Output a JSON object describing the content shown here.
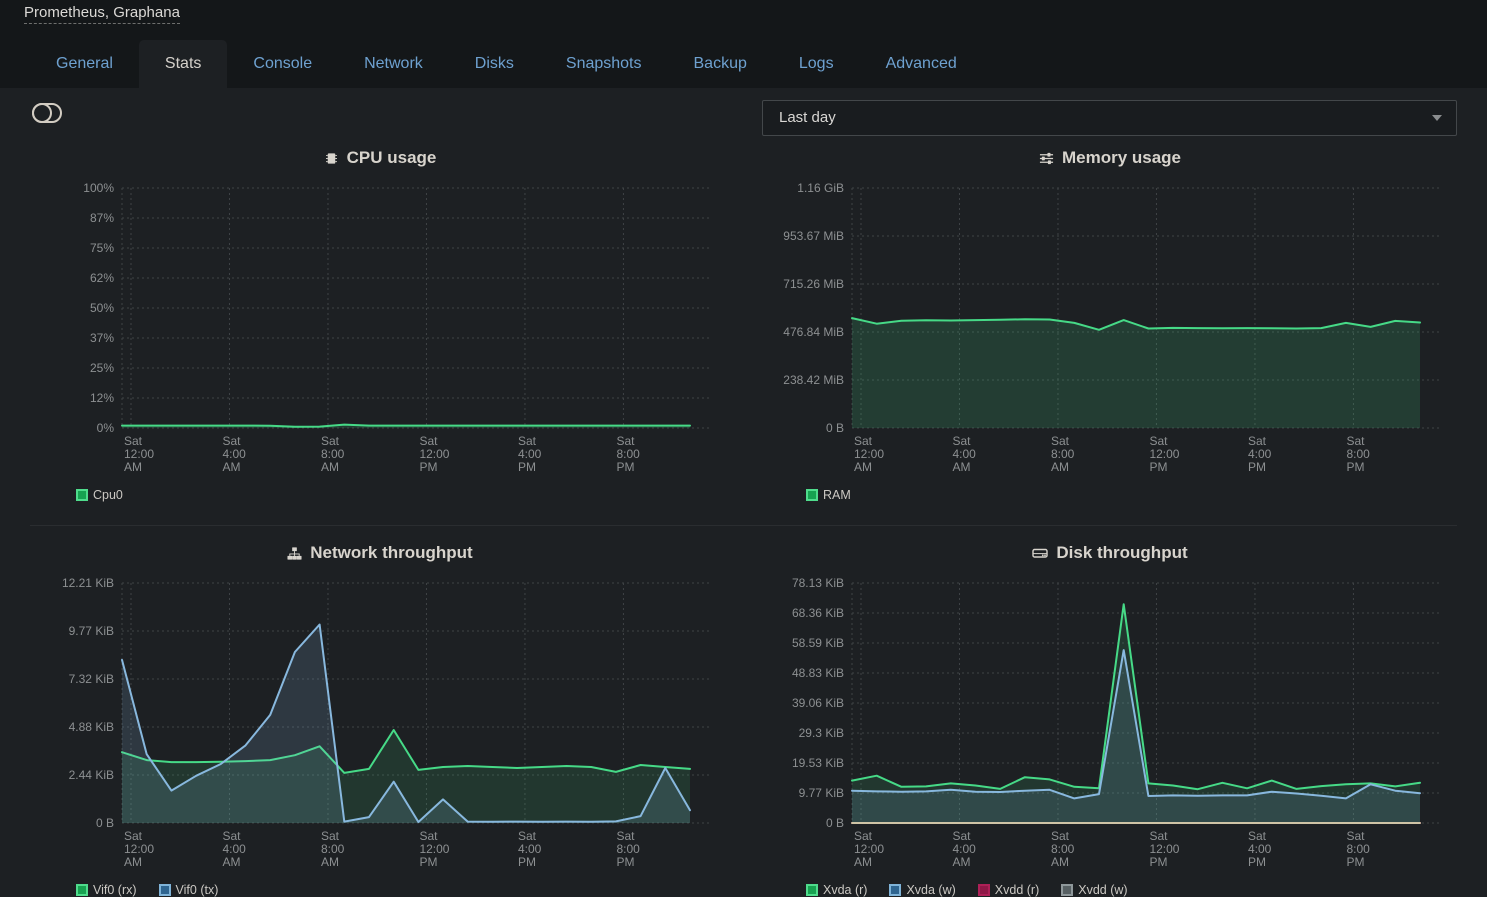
{
  "window_title": "Prometheus, Graphana",
  "tabs": {
    "items": [
      "General",
      "Stats",
      "Console",
      "Network",
      "Disks",
      "Snapshots",
      "Backup",
      "Logs",
      "Advanced"
    ],
    "active": "Stats"
  },
  "controls": {
    "time_range": "Last day",
    "stats_toggle_icon": "toggle-off-icon",
    "time_range_caret_icon": "chevron-down-icon"
  },
  "theme": {
    "bg_header": "#141719",
    "bg_content": "#1d2023",
    "tab_link_color": "#6ea1d0",
    "active_tab_text": "#d5d1cb",
    "axis_label_color": "#8d9092",
    "grid_color": "#3f4346",
    "chart_title_color": "#d8d4cd",
    "legend_text_color": "#cbc8c3",
    "accent_green": "#46da87",
    "accent_blue": "#88b8de",
    "accent_crimson": "#9e1b4e",
    "accent_tan": "#cfc4a6"
  },
  "chart_data": [
    {
      "id": "cpu",
      "type": "area",
      "title": "CPU usage",
      "icon": "microchip-icon",
      "unit": "%",
      "ymax": 100,
      "ylim": [
        0,
        100
      ],
      "grid": true,
      "legend_position": "bottom-left",
      "ytick_labels": [
        "100%",
        "87%",
        "75%",
        "62%",
        "50%",
        "37%",
        "25%",
        "12%",
        "0%"
      ],
      "xtick_labels": [
        [
          "Sat",
          "12:00",
          "AM"
        ],
        [
          "Sat",
          "4:00",
          "AM"
        ],
        [
          "Sat",
          "8:00",
          "AM"
        ],
        [
          "Sat",
          "12:00",
          "PM"
        ],
        [
          "Sat",
          "4:00",
          "PM"
        ],
        [
          "Sat",
          "8:00",
          "PM"
        ]
      ],
      "series": [
        {
          "name": "Cpu0",
          "color": "#46da87",
          "fill": "rgba(70,218,135,0.14)",
          "legend_fill": "#17a251",
          "legend_border": "#4fdc8c",
          "values": [
            1.0,
            1.0,
            1.0,
            1.0,
            1.0,
            1.0,
            0.95,
            0.55,
            0.6,
            1.4,
            1.0,
            1.0,
            1.0,
            1.0,
            1.0,
            1.0,
            1.0,
            1.0,
            1.0,
            1.0,
            1.0,
            1.0,
            1.0,
            1.0
          ]
        }
      ]
    },
    {
      "id": "memory",
      "type": "area",
      "title": "Memory usage",
      "icon": "sliders-icon",
      "unit": "MiB",
      "ymax": 1192.1,
      "ylim": [
        0,
        1192.1
      ],
      "grid": true,
      "legend_position": "bottom-left",
      "ytick_labels": [
        "1.16 GiB",
        "953.67 MiB",
        "715.26 MiB",
        "476.84 MiB",
        "238.42 MiB",
        "0 B"
      ],
      "xtick_labels": [
        [
          "Sat",
          "12:00",
          "AM"
        ],
        [
          "Sat",
          "4:00",
          "AM"
        ],
        [
          "Sat",
          "8:00",
          "AM"
        ],
        [
          "Sat",
          "12:00",
          "PM"
        ],
        [
          "Sat",
          "4:00",
          "PM"
        ],
        [
          "Sat",
          "8:00",
          "PM"
        ]
      ],
      "series": [
        {
          "name": "RAM",
          "color": "#46da87",
          "fill": "rgba(70,218,135,0.16)",
          "legend_fill": "#17a251",
          "legend_border": "#4fdc8c",
          "values": [
            546,
            518,
            533,
            535,
            534,
            536,
            538,
            540,
            539,
            522,
            488,
            536,
            494,
            497,
            496,
            495,
            496,
            495,
            494,
            496,
            522,
            502,
            532,
            524
          ]
        }
      ]
    },
    {
      "id": "network",
      "type": "area",
      "title": "Network throughput",
      "icon": "sitemap-icon",
      "unit": "KiB",
      "ymax": 12.21,
      "ylim": [
        0,
        12.21
      ],
      "grid": true,
      "legend_position": "bottom-left",
      "ytick_labels": [
        "12.21 KiB",
        "9.77 KiB",
        "7.32 KiB",
        "4.88 KiB",
        "2.44 KiB",
        "0 B"
      ],
      "xtick_labels": [
        [
          "Sat",
          "12:00",
          "AM"
        ],
        [
          "Sat",
          "4:00",
          "AM"
        ],
        [
          "Sat",
          "8:00",
          "AM"
        ],
        [
          "Sat",
          "12:00",
          "PM"
        ],
        [
          "Sat",
          "4:00",
          "PM"
        ],
        [
          "Sat",
          "8:00",
          "PM"
        ]
      ],
      "series": [
        {
          "name": "Vif0 (rx)",
          "color": "#46da87",
          "fill": "rgba(70,218,135,0.13)",
          "legend_fill": "#17a251",
          "legend_border": "#4fdc8c",
          "values": [
            3.6,
            3.2,
            3.1,
            3.1,
            3.12,
            3.15,
            3.2,
            3.45,
            3.9,
            2.55,
            2.75,
            4.73,
            2.7,
            2.85,
            2.9,
            2.85,
            2.8,
            2.85,
            2.9,
            2.85,
            2.6,
            2.95,
            2.85,
            2.75
          ]
        },
        {
          "name": "Vif0 (tx)",
          "color": "#88b8de",
          "fill": "rgba(136,184,222,0.16)",
          "legend_fill": "#2f6590",
          "legend_border": "#7fb3d8",
          "values": [
            8.3,
            3.5,
            1.65,
            2.4,
            3.0,
            3.95,
            5.5,
            8.7,
            10.1,
            0.07,
            0.3,
            2.1,
            0.05,
            1.2,
            0.07,
            0.06,
            0.07,
            0.06,
            0.07,
            0.06,
            0.08,
            0.35,
            2.8,
            0.65
          ]
        }
      ]
    },
    {
      "id": "disk",
      "type": "area",
      "title": "Disk throughput",
      "icon": "hdd-icon",
      "unit": "KiB",
      "ymax": 78.13,
      "ylim": [
        0,
        78.13
      ],
      "grid": true,
      "legend_position": "bottom-left",
      "ytick_labels": [
        "78.13 KiB",
        "68.36 KiB",
        "58.59 KiB",
        "48.83 KiB",
        "39.06 KiB",
        "29.3 KiB",
        "19.53 KiB",
        "9.77 KiB",
        "0 B"
      ],
      "xtick_labels": [
        [
          "Sat",
          "12:00",
          "AM"
        ],
        [
          "Sat",
          "4:00",
          "AM"
        ],
        [
          "Sat",
          "8:00",
          "AM"
        ],
        [
          "Sat",
          "12:00",
          "PM"
        ],
        [
          "Sat",
          "4:00",
          "PM"
        ],
        [
          "Sat",
          "8:00",
          "PM"
        ]
      ],
      "series": [
        {
          "name": "Xvda (r)",
          "color": "#46da87",
          "fill": "rgba(70,218,135,0.13)",
          "legend_fill": "#17a251",
          "legend_border": "#4fdc8c",
          "values": [
            13.8,
            15.4,
            11.8,
            11.9,
            12.9,
            12.2,
            11.1,
            14.9,
            14.2,
            11.8,
            11.3,
            71.2,
            12.9,
            12.2,
            11.0,
            13.1,
            11.3,
            13.8,
            11.1,
            12.0,
            12.6,
            12.9,
            11.9,
            13.1
          ]
        },
        {
          "name": "Xvda (w)",
          "color": "#88b8de",
          "fill": "rgba(136,184,222,0.15)",
          "legend_fill": "#2f6590",
          "legend_border": "#7fb3d8",
          "values": [
            10.5,
            10.3,
            10.2,
            10.3,
            10.8,
            10.2,
            10.1,
            10.5,
            10.8,
            8.0,
            9.4,
            56.3,
            8.8,
            9.0,
            8.9,
            9.0,
            9.0,
            10.2,
            9.6,
            8.9,
            8.0,
            12.6,
            10.5,
            9.7
          ]
        },
        {
          "name": "Xvdd (r)",
          "color": "#9e1b4e",
          "fill": null,
          "legend_fill": "#8f1847",
          "legend_border": "#ad2057",
          "values": [
            0,
            0,
            0,
            0,
            0,
            0,
            0,
            0,
            0,
            0,
            0,
            0,
            0,
            0,
            0,
            0,
            0,
            0,
            0,
            0,
            0,
            0,
            0,
            0
          ]
        },
        {
          "name": "Xvdd (w)",
          "color": "#cfc4a6",
          "fill": null,
          "legend_fill": "#576063",
          "legend_border": "#8f989b",
          "values": [
            0,
            0,
            0,
            0,
            0,
            0,
            0,
            0,
            0,
            0,
            0,
            0,
            0,
            0,
            0,
            0,
            0,
            0,
            0,
            0,
            0,
            0,
            0,
            0
          ]
        }
      ]
    }
  ]
}
